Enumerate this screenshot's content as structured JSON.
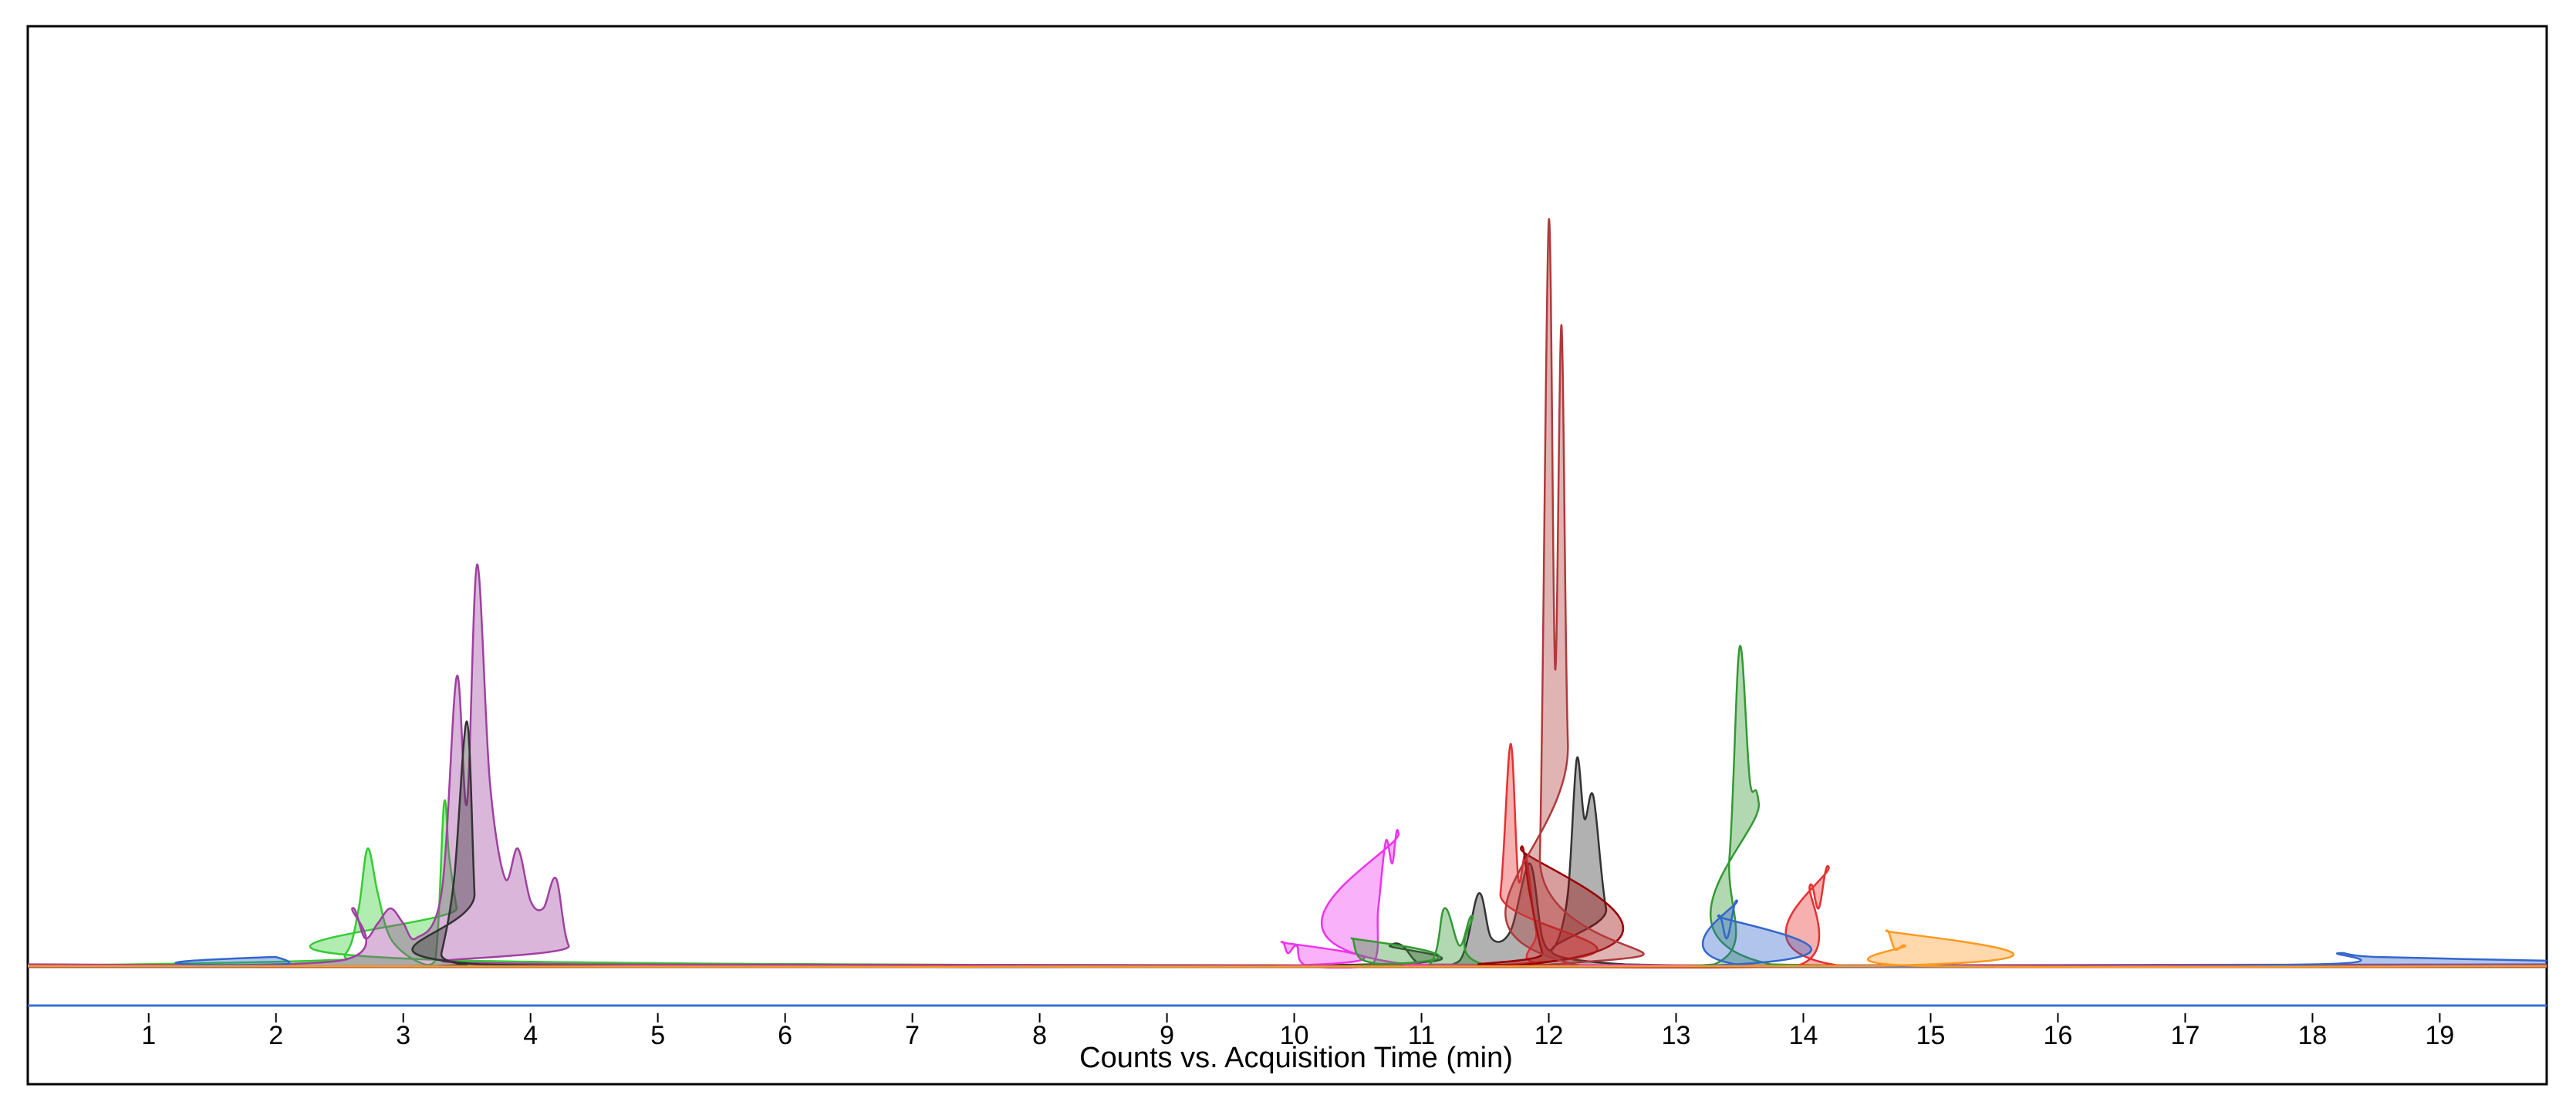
{
  "chart_data": {
    "type": "area",
    "x_label": "Counts vs. Acquisition Time (min)",
    "xlim": [
      0.05,
      19.84
    ],
    "xticks": [
      1,
      2,
      3,
      4,
      5,
      6,
      7,
      8,
      9,
      10,
      11,
      12,
      13,
      14,
      15,
      16,
      17,
      18,
      19
    ],
    "ylim": [
      -5,
      126
    ],
    "series": [
      {
        "color": "#33cc33",
        "x": [
          0.05,
          2.3,
          2.55,
          2.65,
          2.72,
          2.8,
          2.9,
          3.1,
          3.25,
          3.32,
          3.36,
          3.42,
          3.5,
          19.84
        ],
        "values": [
          0.3,
          1,
          2,
          8,
          16,
          10,
          4,
          1,
          1,
          22,
          15,
          8,
          1,
          0.3
        ]
      },
      {
        "color": "#a040a0",
        "x": [
          0.05,
          2.5,
          2.6,
          2.7,
          2.8,
          2.9,
          3.0,
          3.1,
          3.3,
          3.42,
          3.5,
          3.58,
          3.68,
          3.8,
          3.9,
          4.0,
          4.1,
          4.2,
          4.3,
          4.5,
          19.84
        ],
        "values": [
          0.5,
          1,
          8,
          4,
          6,
          8,
          6,
          4,
          10,
          39,
          22,
          54,
          25,
          12,
          16,
          9,
          8,
          12,
          3,
          0.5,
          0.5
        ]
      },
      {
        "color": "#333333",
        "x": [
          0.05,
          3.25,
          3.3,
          3.4,
          3.5,
          3.56,
          3.6,
          10.6,
          10.75,
          10.85,
          11.0,
          11.3,
          11.45,
          11.55,
          11.7,
          11.85,
          11.95,
          12.05,
          12.15,
          12.22,
          12.28,
          12.35,
          12.45,
          12.6,
          19.84
        ],
        "values": [
          0.3,
          0.3,
          2,
          12,
          33,
          10,
          0.5,
          0.5,
          3,
          3,
          0.5,
          1,
          10,
          4,
          5,
          14,
          4,
          3,
          10,
          28,
          20,
          23,
          8,
          0.5,
          0.3
        ]
      },
      {
        "color": "#ee33ee",
        "x": [
          0.05,
          9.8,
          9.9,
          9.95,
          10.02,
          10.1,
          10.6,
          10.66,
          10.72,
          10.77,
          10.82,
          10.9,
          19.84
        ],
        "values": [
          0.3,
          0.3,
          3.5,
          2,
          3,
          0.3,
          0.3,
          8,
          17,
          14,
          18,
          0.5,
          0.3
        ]
      },
      {
        "color": "#339933",
        "x": [
          0.05,
          10.35,
          10.45,
          10.55,
          11.05,
          11.18,
          11.3,
          11.4,
          11.5,
          13.3,
          13.42,
          13.5,
          13.58,
          13.65,
          13.75,
          19.84
        ],
        "values": [
          0.3,
          0.3,
          4,
          1,
          0.3,
          8,
          3,
          7,
          0.5,
          0.5,
          15,
          43,
          25,
          22,
          0.5,
          0.3
        ]
      },
      {
        "color": "#e83030",
        "x": [
          0.05,
          11.5,
          11.62,
          11.7,
          11.76,
          11.82,
          11.9,
          12.0,
          13.95,
          14.05,
          14.12,
          14.2,
          14.3,
          19.84
        ],
        "values": [
          0.3,
          0.3,
          10,
          30,
          12,
          15,
          5,
          0.3,
          0.3,
          11,
          8,
          13.5,
          0.3,
          0.3
        ]
      },
      {
        "color": "#990000",
        "x": [
          0.05,
          11.7,
          11.78,
          11.85,
          11.95,
          12.05,
          19.84
        ],
        "values": [
          0.3,
          0.3,
          16,
          10,
          2,
          0.3,
          0.3
        ]
      },
      {
        "color": "#b03a3a",
        "x": [
          0.05,
          11.85,
          11.93,
          12.0,
          12.05,
          12.1,
          12.15,
          12.25,
          19.84
        ],
        "values": [
          0.3,
          0.3,
          15,
          100,
          40,
          86,
          30,
          0.3,
          0.3
        ]
      },
      {
        "color": "#3366cc",
        "x": [
          0.05,
          1.95,
          2.0,
          2.05,
          13.2,
          13.33,
          13.4,
          13.48,
          13.56,
          18.0,
          18.2,
          18.5,
          19.84
        ],
        "values": [
          0.3,
          0.3,
          1.5,
          0.3,
          0.3,
          7,
          4,
          9,
          0.3,
          0.5,
          2,
          1.5,
          1
        ]
      },
      {
        "color": "#ff9922",
        "x": [
          0.05,
          14.55,
          14.65,
          14.72,
          14.8,
          14.9,
          19.84
        ],
        "values": [
          0.3,
          0.3,
          5,
          2.5,
          3,
          0.3,
          0.3
        ]
      }
    ]
  }
}
